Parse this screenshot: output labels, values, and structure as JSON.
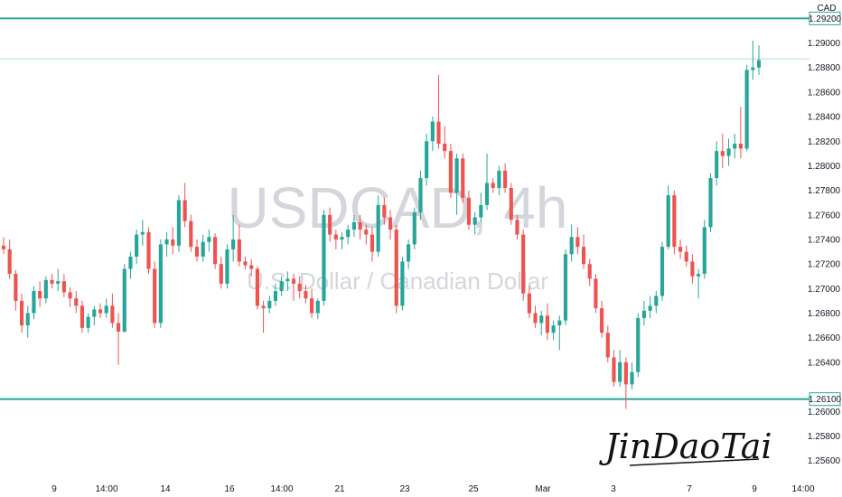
{
  "chart_data": {
    "type": "candlestick",
    "symbol": "USDCAD, 4h",
    "description": "U.S. Dollar / Canadian Dollar",
    "currency": "CAD",
    "signature": "JinDaoTai",
    "y_range": [
      1.2545,
      1.2935
    ],
    "y_ticks": [
      "1.25600",
      "1.25800",
      "1.26000",
      "1.26400",
      "1.26600",
      "1.26800",
      "1.27000",
      "1.27200",
      "1.27400",
      "1.27600",
      "1.27800",
      "1.28000",
      "1.28200",
      "1.28400",
      "1.28600",
      "1.28800",
      "1.29000"
    ],
    "x_ticks": [
      "9",
      "14:00",
      "14",
      "16",
      "14:00",
      "21",
      "23",
      "25",
      "Mar",
      "3",
      "7",
      "9",
      "14:00"
    ],
    "horizontal_lines": [
      {
        "price": 1.292,
        "label": "1.29200",
        "color": "#26a69a"
      },
      {
        "price": 1.2887,
        "label": "",
        "color": "#b2dfdb"
      },
      {
        "price": 1.261,
        "label": "1.26100",
        "color": "#26a69a"
      }
    ],
    "colors": {
      "up": "#26a69a",
      "down": "#ef5350",
      "axis_text": "#131722"
    },
    "candles": [
      [
        1.2735,
        1.2742,
        1.2728,
        1.2732
      ],
      [
        1.2732,
        1.274,
        1.2708,
        1.2712
      ],
      [
        1.2712,
        1.2715,
        1.2682,
        1.269
      ],
      [
        1.269,
        1.2696,
        1.2664,
        1.267
      ],
      [
        1.267,
        1.2686,
        1.266,
        1.268
      ],
      [
        1.268,
        1.2702,
        1.2675,
        1.2698
      ],
      [
        1.2698,
        1.2706,
        1.2685,
        1.2692
      ],
      [
        1.2692,
        1.271,
        1.2688,
        1.2707
      ],
      [
        1.2707,
        1.2712,
        1.27,
        1.2704
      ],
      [
        1.2704,
        1.2716,
        1.2698,
        1.2706
      ],
      [
        1.2706,
        1.2712,
        1.2693,
        1.2697
      ],
      [
        1.2697,
        1.2701,
        1.2685,
        1.2692
      ],
      [
        1.2692,
        1.2698,
        1.268,
        1.2686
      ],
      [
        1.2686,
        1.269,
        1.2664,
        1.2668
      ],
      [
        1.2668,
        1.268,
        1.2664,
        1.2677
      ],
      [
        1.2677,
        1.2686,
        1.267,
        1.2683
      ],
      [
        1.2683,
        1.2688,
        1.2676,
        1.268
      ],
      [
        1.268,
        1.2692,
        1.2676,
        1.2686
      ],
      [
        1.2686,
        1.2696,
        1.2668,
        1.2672
      ],
      [
        1.2672,
        1.268,
        1.2638,
        1.2665
      ],
      [
        1.2665,
        1.272,
        1.2664,
        1.2716
      ],
      [
        1.2716,
        1.273,
        1.2708,
        1.2726
      ],
      [
        1.2726,
        1.2748,
        1.272,
        1.2744
      ],
      [
        1.2744,
        1.2756,
        1.2735,
        1.2746
      ],
      [
        1.2746,
        1.275,
        1.2712,
        1.2716
      ],
      [
        1.2716,
        1.2722,
        1.2668,
        1.2672
      ],
      [
        1.2672,
        1.274,
        1.2668,
        1.2736
      ],
      [
        1.2736,
        1.2746,
        1.2726,
        1.274
      ],
      [
        1.274,
        1.275,
        1.2728,
        1.2735
      ],
      [
        1.2735,
        1.2776,
        1.273,
        1.2772
      ],
      [
        1.2772,
        1.2786,
        1.275,
        1.2755
      ],
      [
        1.2755,
        1.276,
        1.273,
        1.2734
      ],
      [
        1.2734,
        1.274,
        1.2722,
        1.2726
      ],
      [
        1.2726,
        1.2744,
        1.2722,
        1.2738
      ],
      [
        1.2738,
        1.2748,
        1.273,
        1.2742
      ],
      [
        1.2742,
        1.2745,
        1.2716,
        1.272
      ],
      [
        1.272,
        1.2726,
        1.27,
        1.2704
      ],
      [
        1.2704,
        1.2736,
        1.27,
        1.2732
      ],
      [
        1.2732,
        1.276,
        1.2722,
        1.274
      ],
      [
        1.274,
        1.2752,
        1.2718,
        1.2722
      ],
      [
        1.2722,
        1.2726,
        1.2716,
        1.2719
      ],
      [
        1.2719,
        1.2724,
        1.271,
        1.2716
      ],
      [
        1.2716,
        1.2718,
        1.2683,
        1.2686
      ],
      [
        1.2686,
        1.269,
        1.2664,
        1.2684
      ],
      [
        1.2684,
        1.2694,
        1.268,
        1.269
      ],
      [
        1.269,
        1.2704,
        1.2686,
        1.2698
      ],
      [
        1.2698,
        1.271,
        1.2694,
        1.2706
      ],
      [
        1.2706,
        1.2714,
        1.2698,
        1.2708
      ],
      [
        1.2708,
        1.2712,
        1.269,
        1.2704
      ],
      [
        1.2704,
        1.271,
        1.2692,
        1.2698
      ],
      [
        1.2698,
        1.2703,
        1.2688,
        1.2692
      ],
      [
        1.2692,
        1.27,
        1.2676,
        1.268
      ],
      [
        1.268,
        1.2692,
        1.2675,
        1.269
      ],
      [
        1.269,
        1.2764,
        1.2686,
        1.276
      ],
      [
        1.276,
        1.2766,
        1.2738,
        1.2744
      ],
      [
        1.2744,
        1.2748,
        1.2732,
        1.274
      ],
      [
        1.274,
        1.2746,
        1.2732,
        1.2742
      ],
      [
        1.2742,
        1.2752,
        1.2736,
        1.2748
      ],
      [
        1.2748,
        1.276,
        1.2742,
        1.2754
      ],
      [
        1.2754,
        1.276,
        1.274,
        1.2748
      ],
      [
        1.2748,
        1.2752,
        1.2736,
        1.2744
      ],
      [
        1.2744,
        1.275,
        1.2722,
        1.273
      ],
      [
        1.273,
        1.2776,
        1.2726,
        1.2768
      ],
      [
        1.2768,
        1.2774,
        1.2752,
        1.2758
      ],
      [
        1.2758,
        1.2764,
        1.274,
        1.2748
      ],
      [
        1.2748,
        1.2752,
        1.268,
        1.2686
      ],
      [
        1.2686,
        1.2726,
        1.2682,
        1.2722
      ],
      [
        1.2722,
        1.274,
        1.2716,
        1.2736
      ],
      [
        1.2736,
        1.2766,
        1.2732,
        1.2762
      ],
      [
        1.2762,
        1.2796,
        1.2756,
        1.279
      ],
      [
        1.279,
        1.2826,
        1.2784,
        1.282
      ],
      [
        1.282,
        1.284,
        1.2812,
        1.2836
      ],
      [
        1.2836,
        1.2874,
        1.2814,
        1.2818
      ],
      [
        1.2818,
        1.2832,
        1.2806,
        1.2812
      ],
      [
        1.2812,
        1.2818,
        1.2774,
        1.2778
      ],
      [
        1.2778,
        1.281,
        1.276,
        1.2806
      ],
      [
        1.2806,
        1.281,
        1.277,
        1.2774
      ],
      [
        1.2774,
        1.278,
        1.2748,
        1.2752
      ],
      [
        1.2752,
        1.2762,
        1.2744,
        1.2758
      ],
      [
        1.2758,
        1.2778,
        1.2754,
        1.2768
      ],
      [
        1.2768,
        1.281,
        1.2764,
        1.2786
      ],
      [
        1.2786,
        1.279,
        1.2778,
        1.2782
      ],
      [
        1.2782,
        1.28,
        1.2776,
        1.2796
      ],
      [
        1.2796,
        1.2802,
        1.2778,
        1.2782
      ],
      [
        1.2782,
        1.2786,
        1.2752,
        1.2756
      ],
      [
        1.2756,
        1.276,
        1.274,
        1.2744
      ],
      [
        1.2744,
        1.2748,
        1.269,
        1.2696
      ],
      [
        1.2696,
        1.2702,
        1.2676,
        1.268
      ],
      [
        1.268,
        1.2686,
        1.2668,
        1.2672
      ],
      [
        1.2672,
        1.2682,
        1.2662,
        1.2678
      ],
      [
        1.2678,
        1.2688,
        1.2658,
        1.2664
      ],
      [
        1.2664,
        1.2674,
        1.2658,
        1.267
      ],
      [
        1.267,
        1.2678,
        1.265,
        1.2674
      ],
      [
        1.2674,
        1.2732,
        1.267,
        1.2728
      ],
      [
        1.2728,
        1.2752,
        1.2722,
        1.2742
      ],
      [
        1.2742,
        1.275,
        1.2728,
        1.2734
      ],
      [
        1.2734,
        1.2744,
        1.2716,
        1.272
      ],
      [
        1.272,
        1.2724,
        1.2702,
        1.2708
      ],
      [
        1.2708,
        1.2712,
        1.268,
        1.2684
      ],
      [
        1.2684,
        1.269,
        1.266,
        1.2664
      ],
      [
        1.2664,
        1.267,
        1.264,
        1.2644
      ],
      [
        1.2644,
        1.265,
        1.262,
        1.2624
      ],
      [
        1.2624,
        1.265,
        1.262,
        1.264
      ],
      [
        1.264,
        1.2644,
        1.2602,
        1.2622
      ],
      [
        1.2622,
        1.264,
        1.2618,
        1.2632
      ],
      [
        1.2632,
        1.268,
        1.2628,
        1.2676
      ],
      [
        1.2676,
        1.269,
        1.267,
        1.2682
      ],
      [
        1.2682,
        1.2694,
        1.2676,
        1.2686
      ],
      [
        1.2686,
        1.2698,
        1.268,
        1.2694
      ],
      [
        1.2694,
        1.2738,
        1.269,
        1.2734
      ],
      [
        1.2734,
        1.2784,
        1.2732,
        1.2776
      ],
      [
        1.2776,
        1.278,
        1.2728,
        1.2734
      ],
      [
        1.2734,
        1.274,
        1.2724,
        1.273
      ],
      [
        1.273,
        1.2735,
        1.2718,
        1.2722
      ],
      [
        1.2722,
        1.2728,
        1.2704,
        1.271
      ],
      [
        1.271,
        1.2716,
        1.2692,
        1.2712
      ],
      [
        1.2712,
        1.2756,
        1.2708,
        1.275
      ],
      [
        1.275,
        1.2794,
        1.2746,
        1.279
      ],
      [
        1.279,
        1.282,
        1.2784,
        1.2812
      ],
      [
        1.2812,
        1.2826,
        1.2798,
        1.2808
      ],
      [
        1.2808,
        1.2822,
        1.28,
        1.2814
      ],
      [
        1.2814,
        1.2826,
        1.2806,
        1.2818
      ],
      [
        1.2818,
        1.2848,
        1.2806,
        1.2814
      ],
      [
        1.2814,
        1.2882,
        1.2812,
        1.2878
      ],
      [
        1.2878,
        1.2902,
        1.287,
        1.288
      ],
      [
        1.288,
        1.2898,
        1.2874,
        1.2886
      ]
    ]
  }
}
